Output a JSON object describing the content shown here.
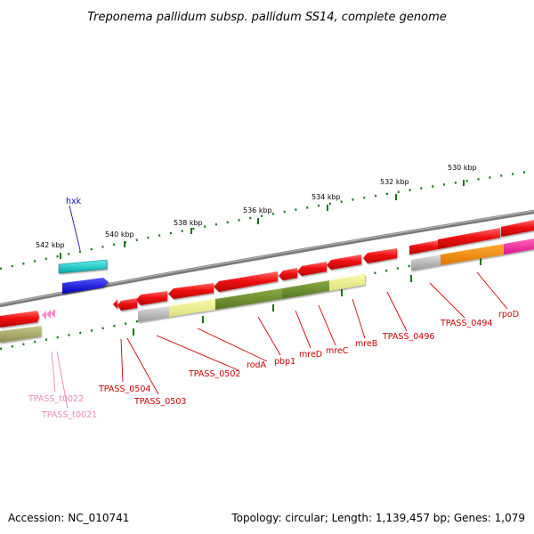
{
  "title": "Treponema pallidum subsp. pallidum SS14, complete genome",
  "footer": {
    "accession": "Accession: NC_010741",
    "summary": "Topology: circular; Length: 1,139,457 bp; Genes: 1,079"
  },
  "scale_labels": [
    "542 kbp",
    "540 kbp",
    "538 kbp",
    "536 kbp",
    "534 kbp",
    "532 kbp",
    "530 kbp"
  ],
  "genes": {
    "hxk": "hxk",
    "TPASS_t0022": "TPASS_t0022",
    "TPASS_t0021": "TPASS_t0021",
    "TPASS_0504": "TPASS_0504",
    "TPASS_0503": "TPASS_0503",
    "TPASS_0502": "TPASS_0502",
    "rodA": "rodA",
    "pbp1": "pbp1",
    "mreD": "mreD",
    "mreC": "mreC",
    "mreB": "mreB",
    "TPASS_0496": "TPASS_0496",
    "TPASS_0494": "TPASS_0494",
    "rpoD": "rpoD"
  },
  "colors": {
    "backbone": "#7a7a7a",
    "cds": "#ee1111",
    "trna": "#ff88cc",
    "tick": "#117711",
    "hxk_label": "#1111aa",
    "gene_label": "#cc0000",
    "trna_label": "#ee88bb"
  }
}
